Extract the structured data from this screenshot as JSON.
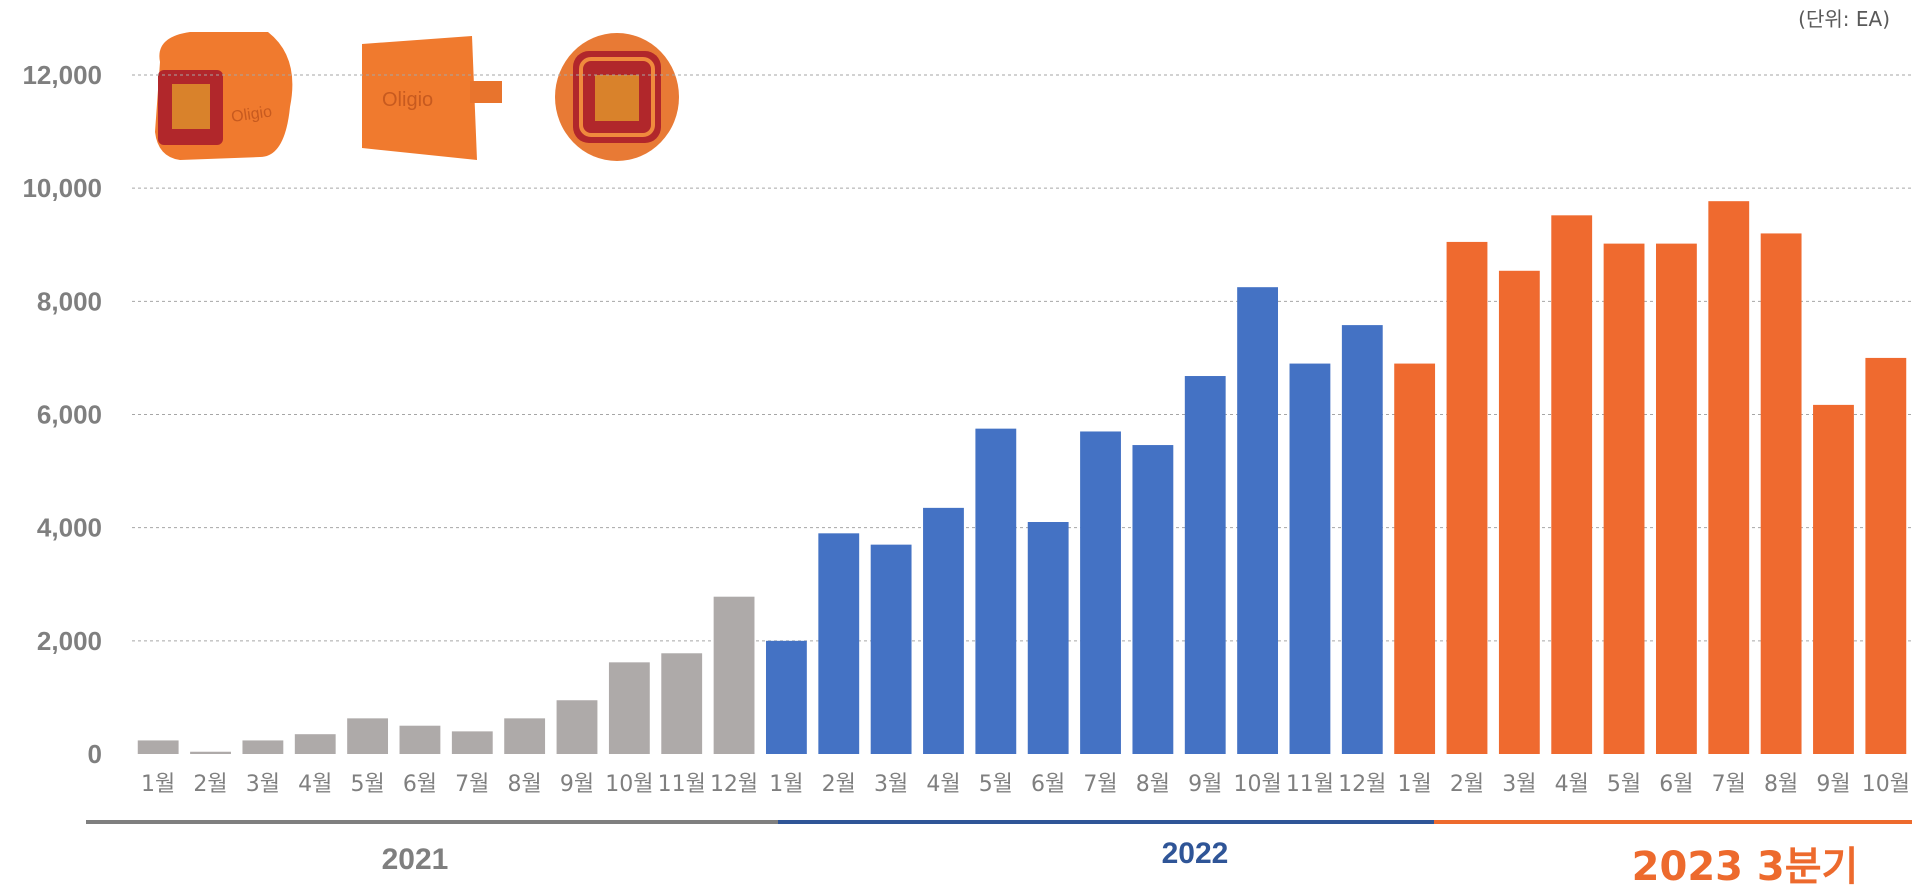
{
  "unit_label": "(단위: EA)",
  "colors": {
    "2021": "#aeaaa9",
    "2022": "#4472c4",
    "2023": "#ef6a2f",
    "grid": "#a6a6a6"
  },
  "product_images": [
    "oligio-device-front-view",
    "oligio-device-side-view",
    "oligio-device-top-view"
  ],
  "product_brand_text": "Oligio",
  "chart_data": {
    "type": "bar",
    "ylim": [
      0,
      12000
    ],
    "yticks": [
      "0",
      "2,000",
      "4,000",
      "6,000",
      "8,000",
      "10,000",
      "12,000"
    ],
    "grid": true,
    "categories": [
      "1월",
      "2월",
      "3월",
      "4월",
      "5월",
      "6월",
      "7월",
      "8월",
      "9월",
      "10월",
      "11월",
      "12월",
      "1월",
      "2월",
      "3월",
      "4월",
      "5월",
      "6월",
      "7월",
      "8월",
      "9월",
      "10월",
      "11월",
      "12월",
      "1월",
      "2월",
      "3월",
      "4월",
      "5월",
      "6월",
      "7월",
      "8월",
      "9월",
      "10월"
    ],
    "groups": [
      {
        "label": "2021",
        "start": 0,
        "count": 12
      },
      {
        "label": "2022",
        "start": 12,
        "count": 12
      },
      {
        "label": "2023 3분기",
        "start": 24,
        "count": 10
      }
    ],
    "values": [
      240,
      40,
      240,
      350,
      630,
      500,
      400,
      630,
      950,
      1620,
      1780,
      2780,
      2000,
      3900,
      3700,
      4350,
      5750,
      4100,
      5700,
      5460,
      6680,
      8250,
      6900,
      7580,
      6900,
      9050,
      8540,
      9520,
      9020,
      9020,
      9770,
      9200,
      6170,
      7000
    ]
  }
}
